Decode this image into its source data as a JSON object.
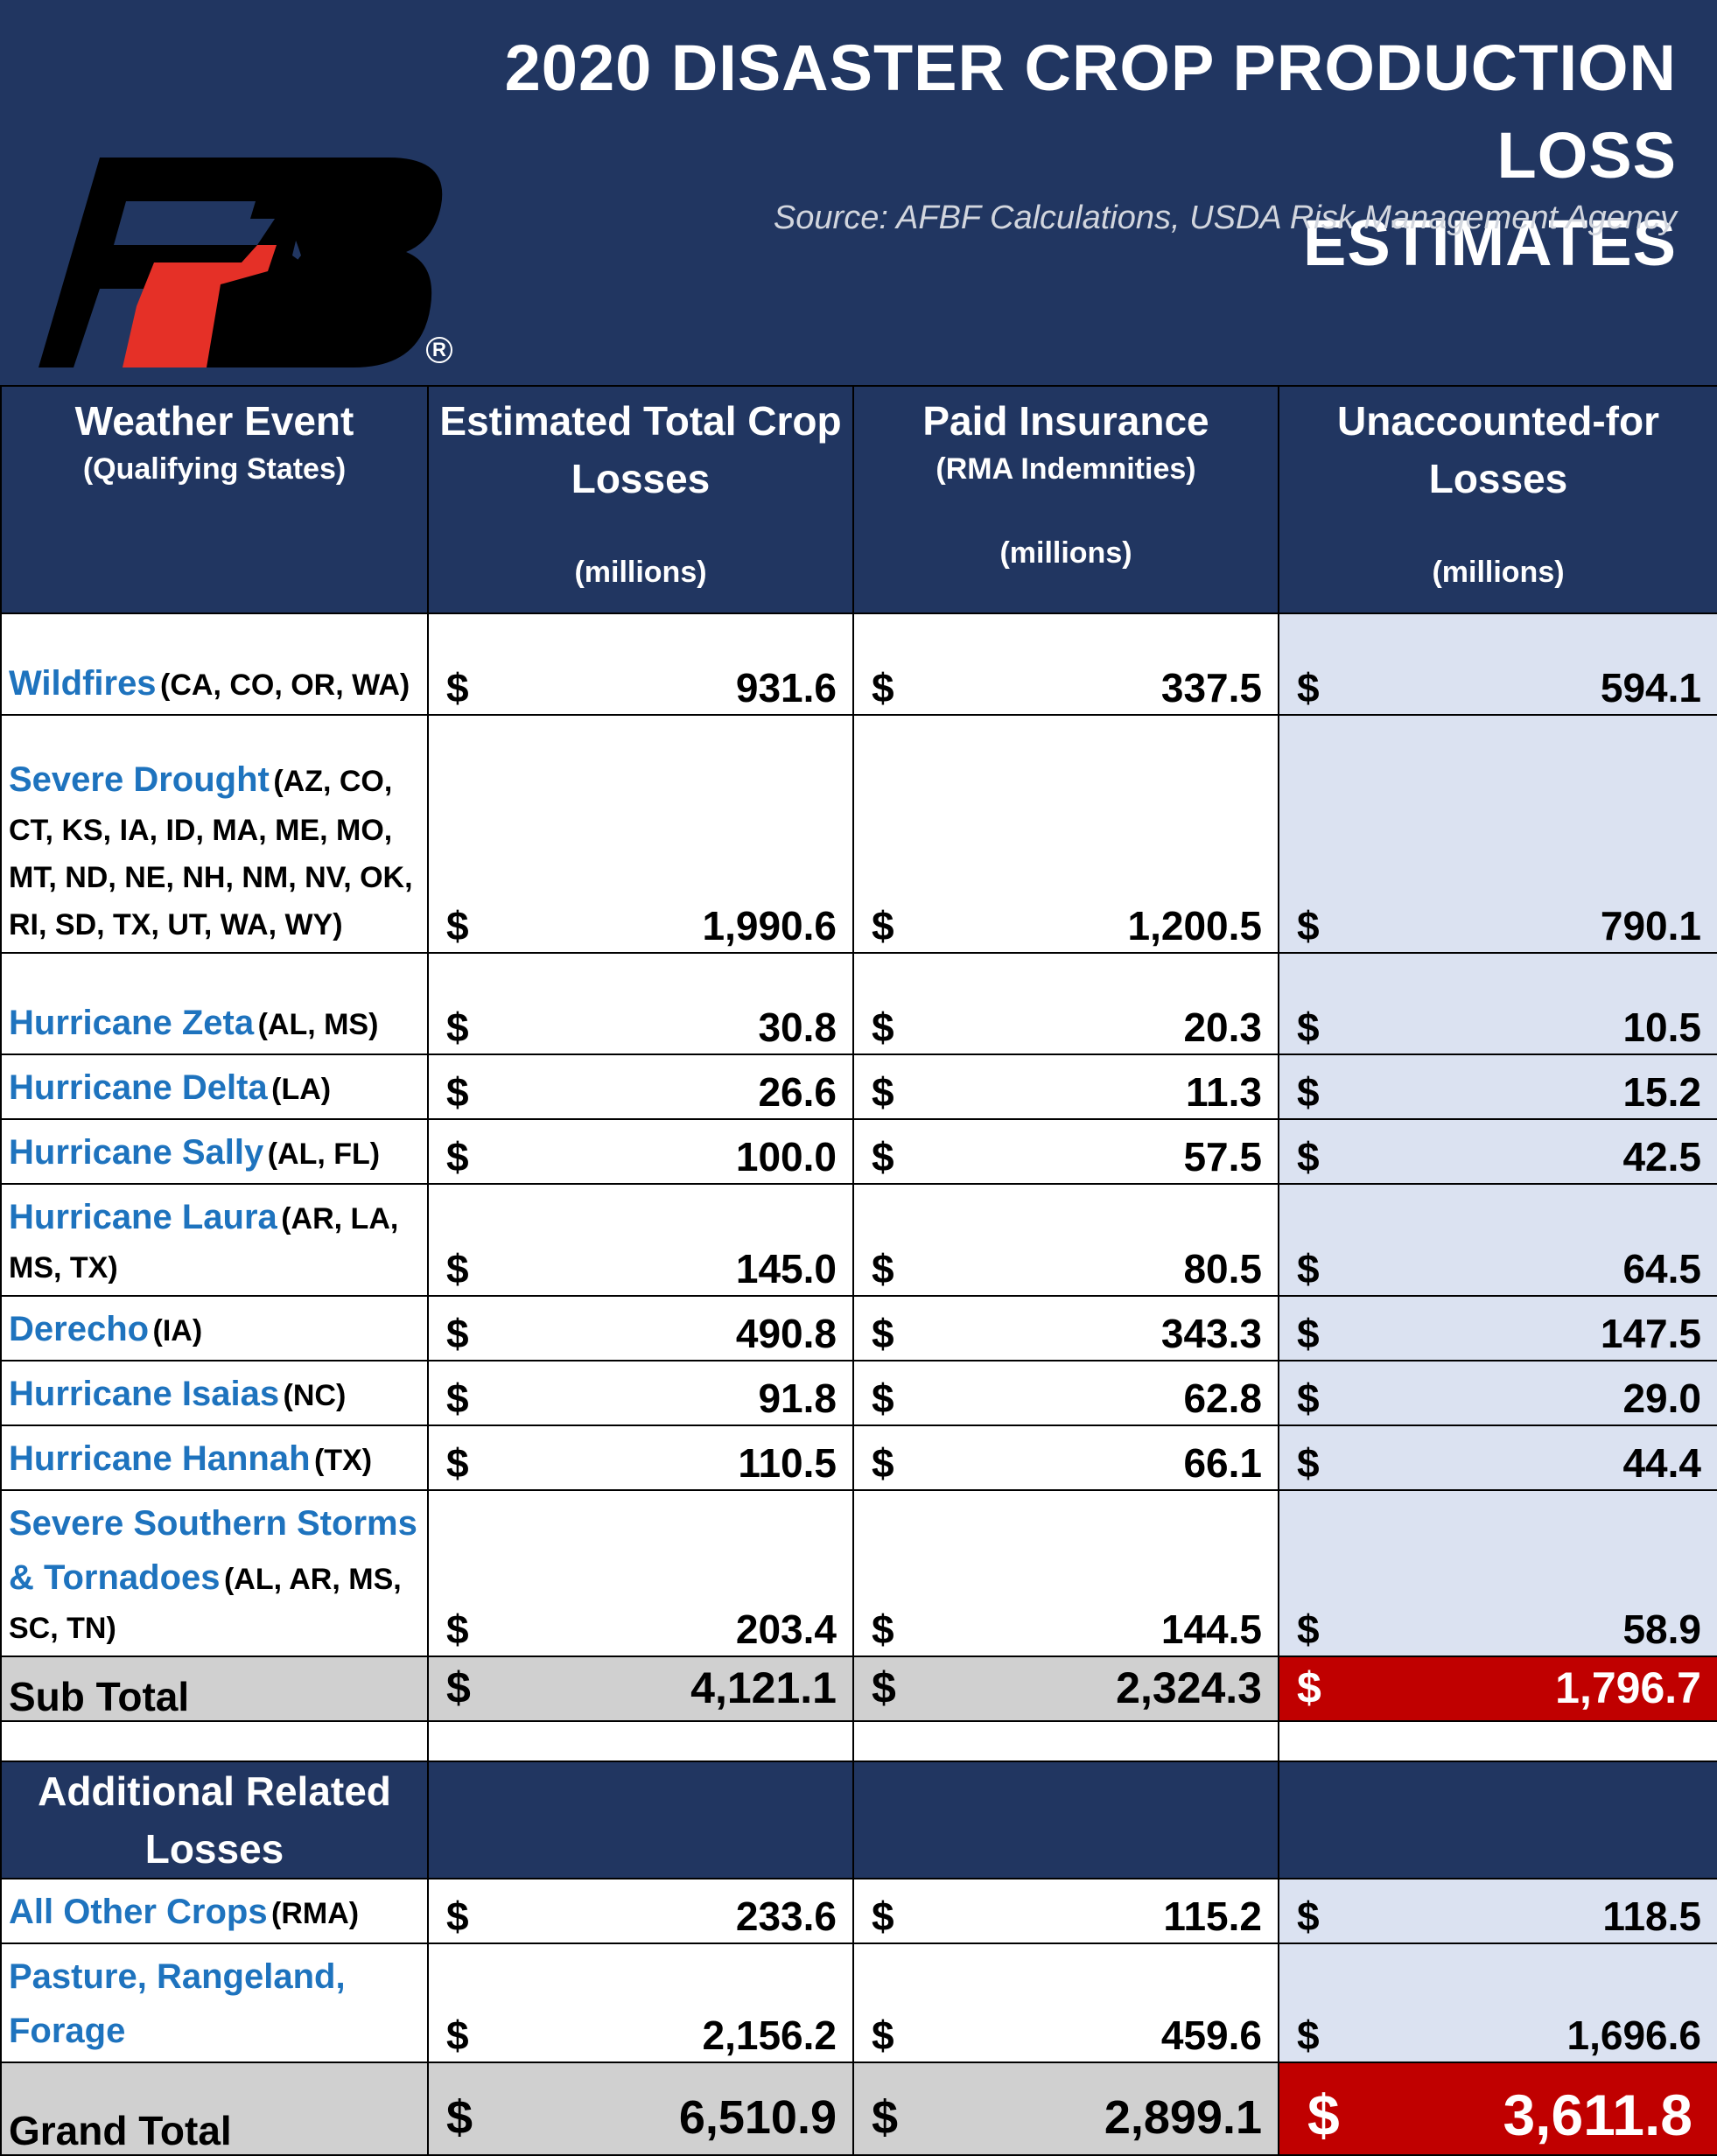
{
  "header": {
    "title_line1": "2020 DISASTER CROP PRODUCTION LOSS",
    "title_line2": "ESTIMATES",
    "source": "Source: AFBF Calculations, USDA Risk Management Agency",
    "logo_text": "FB",
    "logo_registered": "R"
  },
  "colors": {
    "header_bg": "#213661",
    "event_name": "#1e73be",
    "unaccounted_bg": "#dbe2f1",
    "total_bg": "#d0d0d0",
    "highlight_red": "#c00000",
    "logo_black": "#000000",
    "logo_red": "#e53027"
  },
  "columns": {
    "col1_title": "Weather Event",
    "col1_sub": "(Qualifying States)",
    "col2_title": "Estimated Total Crop Losses",
    "col2_units": "(millions)",
    "col3_title": "Paid Insurance",
    "col3_sub": "(RMA Indemnities)",
    "col3_units": "(millions)",
    "col4_title": "Unaccounted-for Losses",
    "col4_units": "(millions)"
  },
  "currency": "$",
  "rows": [
    {
      "name": "Wildfires",
      "states": "(CA, CO, OR, WA)",
      "total": "931.6",
      "paid": "337.5",
      "unaccounted": "594.1"
    },
    {
      "name": "Severe Drought",
      "states": "(AZ, CO, CT, KS, IA, ID, MA, ME, MO, MT, ND, NE, NH, NM, NV, OK, RI, SD, TX, UT, WA, WY)",
      "total": "1,990.6",
      "paid": "1,200.5",
      "unaccounted": "790.1"
    },
    {
      "name": "Hurricane Zeta",
      "states": "(AL, MS)",
      "total": "30.8",
      "paid": "20.3",
      "unaccounted": "10.5"
    },
    {
      "name": "Hurricane Delta",
      "states": "(LA)",
      "total": "26.6",
      "paid": "11.3",
      "unaccounted": "15.2"
    },
    {
      "name": "Hurricane Sally",
      "states": "(AL, FL)",
      "total": "100.0",
      "paid": "57.5",
      "unaccounted": "42.5"
    },
    {
      "name": "Hurricane Laura",
      "states": "(AR, LA, MS, TX)",
      "total": "145.0",
      "paid": "80.5",
      "unaccounted": "64.5"
    },
    {
      "name": "Derecho",
      "states": "(IA)",
      "total": "490.8",
      "paid": "343.3",
      "unaccounted": "147.5"
    },
    {
      "name": "Hurricane Isaias",
      "states": "(NC)",
      "total": "91.8",
      "paid": "62.8",
      "unaccounted": "29.0"
    },
    {
      "name": "Hurricane Hannah",
      "states": "(TX)",
      "total": "110.5",
      "paid": "66.1",
      "unaccounted": "44.4"
    },
    {
      "name": "Severe Southern Storms & Tornadoes",
      "states": "(AL, AR, MS, SC, TN)",
      "total": "203.4",
      "paid": "144.5",
      "unaccounted": "58.9"
    }
  ],
  "subtotal": {
    "label": "Sub Total",
    "total": "4,121.1",
    "paid": "2,324.3",
    "unaccounted": "1,796.7"
  },
  "additional_header": "Additional Related Losses",
  "additional_rows": [
    {
      "name": "All Other Crops",
      "states": "(RMA)",
      "total": "233.6",
      "paid": "115.2",
      "unaccounted": "118.5"
    },
    {
      "name": "Pasture, Rangeland, Forage",
      "states": "",
      "total": "2,156.2",
      "paid": "459.6",
      "unaccounted": "1,696.6"
    }
  ],
  "grandtotal": {
    "label": "Grand Total",
    "total": "6,510.9",
    "paid": "2,899.1",
    "unaccounted": "3,611.8"
  }
}
